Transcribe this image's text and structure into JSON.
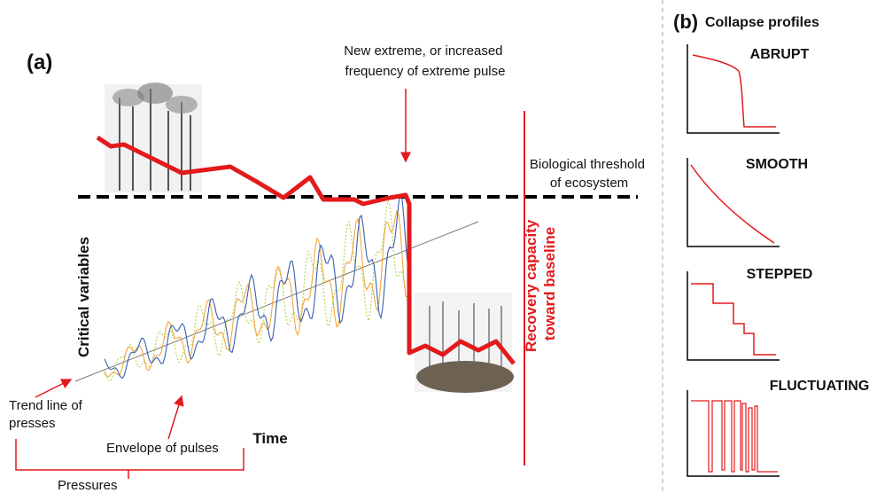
{
  "panel_a": {
    "label": "(a)",
    "extreme_note": [
      "New extreme, or increased",
      "frequency of extreme pulse"
    ],
    "threshold_note": [
      "Biological threshold",
      "of ecosystem"
    ],
    "recovery_note": [
      "Recovery capacity",
      "toward baseline"
    ],
    "trend_note": [
      "Trend line of",
      "presses"
    ],
    "envelope_note": "Envelope of pulses",
    "pressures_note": "Pressures",
    "y_axis_label": "Critical variables",
    "x_axis_label": "Time"
  },
  "panel_b": {
    "label": "(b)",
    "title": "Collapse profiles",
    "profiles": [
      "ABRUPT",
      "SMOOTH",
      "STEPPED",
      "FLUCTUATING"
    ]
  }
}
